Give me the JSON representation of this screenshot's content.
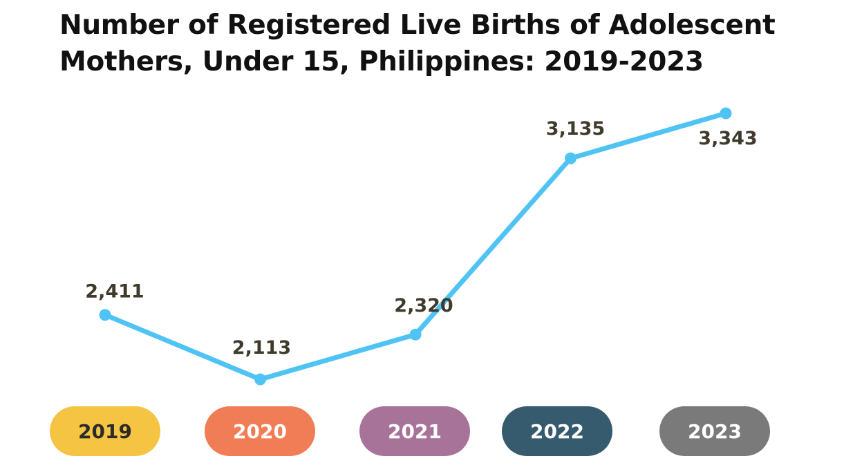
{
  "chart_data": {
    "type": "line",
    "title": "Number of Registered Live Births of Adolescent Mothers, Under 15, Philippines: 2019-2023",
    "categories": [
      "2019",
      "2020",
      "2021",
      "2022",
      "2023"
    ],
    "series": [
      {
        "values": [
          2411,
          2113,
          2320,
          3135,
          3343
        ],
        "value_labels": [
          "2,411",
          "2,113",
          "2,320",
          "3,135",
          "3,343"
        ]
      }
    ],
    "ylim": [
      2113,
      3343
    ],
    "grid": false,
    "legend": "none",
    "line_color": "#4fc3f3",
    "label_color": "#3f3a2b",
    "category_badges": [
      {
        "label": "2019",
        "fill": "#f6c443",
        "text_color": "#2b2b2b"
      },
      {
        "label": "2020",
        "fill": "#f07d55",
        "text_color": "#ffffff"
      },
      {
        "label": "2021",
        "fill": "#a87398",
        "text_color": "#ffffff"
      },
      {
        "label": "2022",
        "fill": "#375b6e",
        "text_color": "#ffffff"
      },
      {
        "label": "2023",
        "fill": "#7a7a7a",
        "text_color": "#ffffff"
      }
    ]
  }
}
